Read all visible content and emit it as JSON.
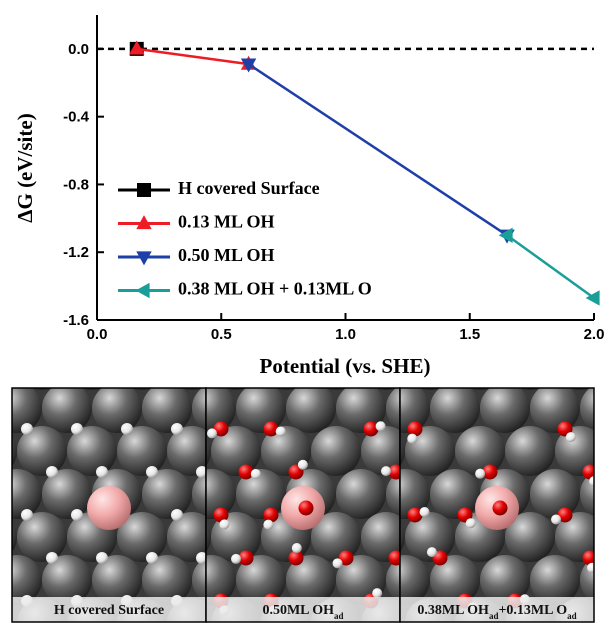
{
  "chart_data": {
    "type": "line",
    "x_label": "Potential (vs. SHE)",
    "y_label": "ΔG (eV/site)",
    "xlim": [
      0,
      2.0
    ],
    "ylim": [
      -1.6,
      0.2
    ],
    "xticks": [
      {
        "value": 0,
        "label": "0.0"
      },
      0.5,
      {
        "value": 1,
        "label": "1.0"
      },
      1.5,
      {
        "value": 2,
        "label": "2.0"
      }
    ],
    "yticks": [
      {
        "value": 0,
        "label": "0.0"
      },
      -0.4,
      -0.8,
      -1.2,
      -1.6
    ],
    "reference_line": {
      "y": 0,
      "style": "dashed",
      "color": "#000000"
    },
    "legend": "lower-left",
    "series": [
      {
        "name": "H covered Surface",
        "color": "#000000",
        "marker": "square",
        "x": [
          0.16
        ],
        "values": [
          0
        ]
      },
      {
        "name": "0.13 ML OH",
        "color": "#ee1c24",
        "marker": "triangle-up",
        "x": [
          0.16,
          0.61
        ],
        "values": [
          0,
          -0.09
        ]
      },
      {
        "name": "0.50 ML OH",
        "color": "#1f3fa8",
        "marker": "triangle-down",
        "x": [
          0.61,
          1.65
        ],
        "values": [
          -0.09,
          -1.1
        ]
      },
      {
        "name": "0.38 ML OH + 0.13ML O",
        "color": "#1a9e9a",
        "marker": "triangle-left",
        "x": [
          1.65,
          2.0
        ],
        "values": [
          -1.1,
          -1.47
        ]
      }
    ]
  },
  "panels": [
    {
      "parts": [
        {
          "text": "H covered Surface"
        }
      ]
    },
    {
      "parts": [
        {
          "text": "0.50ML OH"
        },
        {
          "text": "ad",
          "sub": true
        }
      ]
    },
    {
      "parts": [
        {
          "text": "0.38ML OH"
        },
        {
          "text": "ad",
          "sub": true
        },
        {
          "text": "+0.13ML O"
        },
        {
          "text": "ad",
          "sub": true
        }
      ]
    }
  ]
}
